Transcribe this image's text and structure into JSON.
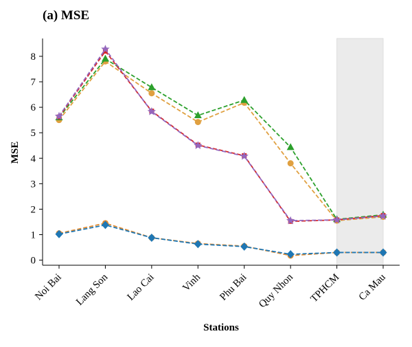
{
  "chart_data": {
    "type": "line",
    "title": "(a) MSE",
    "xlabel": "Stations",
    "ylabel": "MSE",
    "categories": [
      "Noi Bai",
      "Lang Son",
      "Lao Cai",
      "Vinh",
      "Phu Bai",
      "Quy Nhon",
      "TPHCM",
      "Ca Mau"
    ],
    "ylim": [
      -0.2,
      8.7
    ],
    "yticks": [
      0,
      1,
      2,
      3,
      4,
      5,
      6,
      7,
      8
    ],
    "grid": false,
    "highlight_region": {
      "from_category": "TPHCM",
      "to_category": "Ca Mau",
      "color": "#ebebeb"
    },
    "series": [
      {
        "color": "#e0a040",
        "marker": "circle",
        "values": [
          5.5,
          7.8,
          6.55,
          5.42,
          6.18,
          3.8,
          1.55,
          1.7
        ]
      },
      {
        "color": "#2ca02c",
        "marker": "triangle",
        "values": [
          5.6,
          7.9,
          6.78,
          5.68,
          6.28,
          4.43,
          1.6,
          1.78
        ]
      },
      {
        "color": "#d62728",
        "marker": "square",
        "values": [
          5.62,
          8.2,
          5.85,
          4.52,
          4.1,
          1.52,
          1.58,
          1.75
        ]
      },
      {
        "color": "#9467bd",
        "marker": "star",
        "values": [
          5.65,
          8.28,
          5.83,
          4.5,
          4.08,
          1.55,
          1.58,
          1.73
        ]
      },
      {
        "color": "#e08a30",
        "marker": "circle",
        "values": [
          1.05,
          1.45,
          0.88,
          0.65,
          0.55,
          0.18,
          0.3,
          0.3
        ]
      },
      {
        "color": "#1f77b4",
        "marker": "diamond",
        "values": [
          1.02,
          1.38,
          0.88,
          0.63,
          0.53,
          0.23,
          0.3,
          0.3
        ]
      }
    ]
  }
}
